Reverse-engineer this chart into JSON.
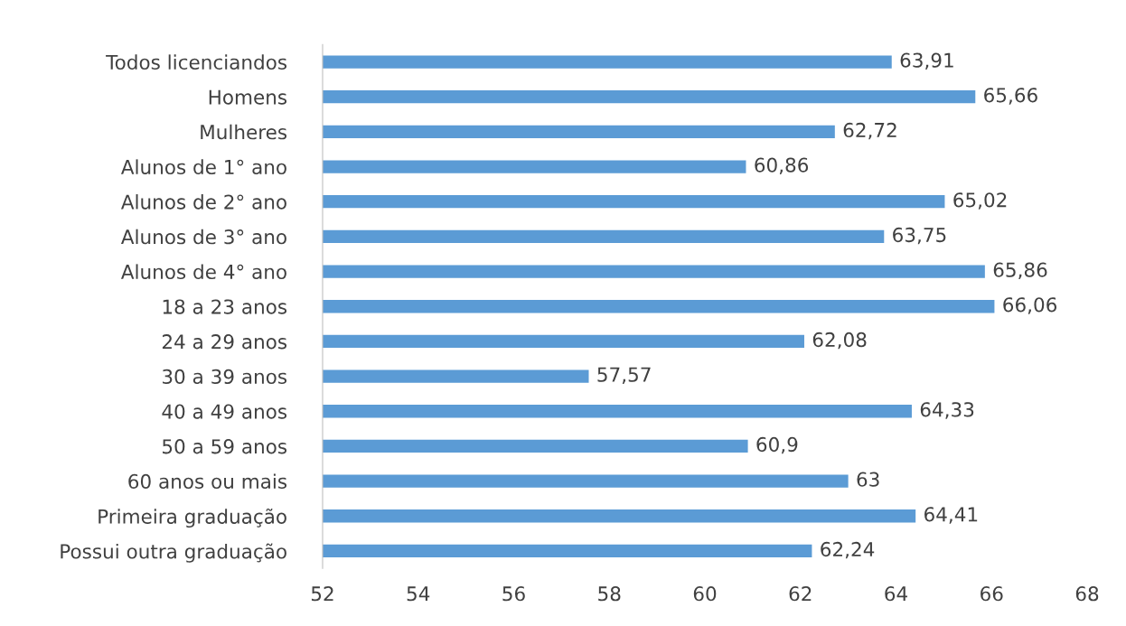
{
  "chart_data": {
    "type": "bar",
    "orientation": "horizontal",
    "categories": [
      "Todos licenciandos",
      "Homens",
      "Mulheres",
      "Alunos de 1° ano",
      "Alunos de 2° ano",
      "Alunos de 3° ano",
      "Alunos de 4° ano",
      "18 a 23 anos",
      "24 a 29 anos",
      "30 a 39 anos",
      "40 a 49 anos",
      "50 a 59 anos",
      "60 anos ou mais",
      "Primeira graduação",
      "Possui outra graduação"
    ],
    "values": [
      63.91,
      65.66,
      62.72,
      60.86,
      65.02,
      63.75,
      65.86,
      66.06,
      62.08,
      57.57,
      64.33,
      60.9,
      63,
      64.41,
      62.24
    ],
    "value_labels": [
      "63,91",
      "65,66",
      "62,72",
      "60,86",
      "65,02",
      "63,75",
      "65,86",
      "66,06",
      "62,08",
      "57,57",
      "64,33",
      "60,9",
      "63",
      "64,41",
      "62,24"
    ],
    "color": "#5b9bd5",
    "xlim": [
      52,
      68
    ],
    "xticks": [
      52,
      54,
      56,
      58,
      60,
      62,
      64,
      66,
      68
    ],
    "grid": false,
    "legend": false
  }
}
